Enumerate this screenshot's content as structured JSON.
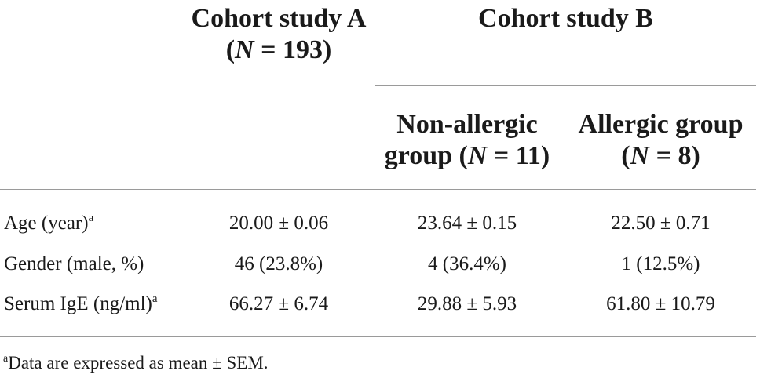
{
  "header": {
    "cohort_a": {
      "line1": "Cohort study A",
      "n_prefix": "(",
      "n_symbol": "N",
      "n_suffix": " = 193)"
    },
    "cohort_b": {
      "title": "Cohort study B",
      "non_allergic": {
        "line1": "Non-allergic",
        "line2_prefix": "group (",
        "n_symbol": "N",
        "n_suffix": " = 11)"
      },
      "allergic": {
        "line1": "Allergic group",
        "line2_prefix": "(",
        "n_symbol": "N",
        "n_suffix": " = 8)"
      }
    }
  },
  "rows": [
    {
      "label": "Age (year)",
      "mark": "a",
      "cohort_a": "20.00 ± 0.06",
      "non_allergic": "23.64 ± 0.15",
      "allergic": "22.50 ± 0.71"
    },
    {
      "label": "Gender (male, %)",
      "mark": "",
      "cohort_a": "46 (23.8%)",
      "non_allergic": "4 (36.4%)",
      "allergic": "1 (12.5%)"
    },
    {
      "label": "Serum IgE (ng/ml)",
      "mark": "a",
      "cohort_a": "66.27 ± 6.74",
      "non_allergic": "29.88 ± 5.93",
      "allergic": "61.80 ± 10.79"
    }
  ],
  "footnote": {
    "mark": "a",
    "text": "Data are expressed as mean ± SEM."
  }
}
